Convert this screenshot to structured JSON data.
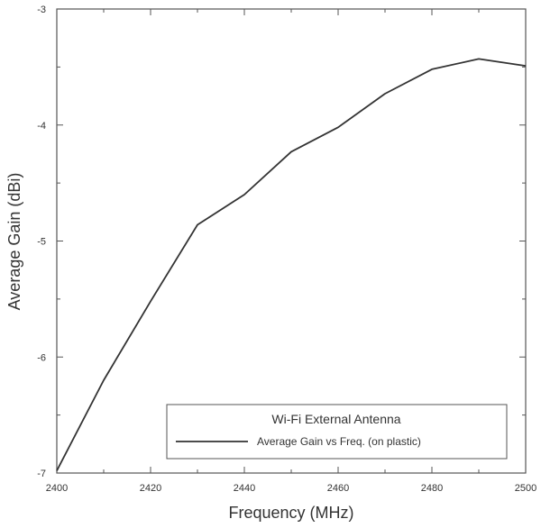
{
  "chart_data": {
    "type": "line",
    "title": "",
    "xlabel": "Frequency (MHz)",
    "ylabel": "Average Gain (dBi)",
    "xlim": [
      2400,
      2500
    ],
    "ylim": [
      -7,
      -3
    ],
    "x_ticks": [
      2400,
      2420,
      2440,
      2460,
      2480,
      2500
    ],
    "y_ticks": [
      -7,
      -6,
      -5,
      -4,
      -3
    ],
    "grid": false,
    "legend": {
      "title": "Wi-Fi External Antenna",
      "placement": "bottom-right"
    },
    "series": [
      {
        "name": "Average Gain vs Freq. (on plastic)",
        "color": "#333333",
        "x": [
          2400,
          2410,
          2420,
          2430,
          2440,
          2450,
          2460,
          2470,
          2480,
          2490,
          2500
        ],
        "y": [
          -6.98,
          -6.2,
          -5.52,
          -4.86,
          -4.6,
          -4.23,
          -4.02,
          -3.73,
          -3.52,
          -3.43,
          -3.49
        ]
      }
    ]
  }
}
